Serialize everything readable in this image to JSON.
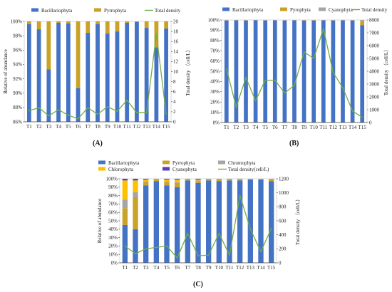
{
  "chart_data": [
    {
      "id": "a",
      "panel_label": "(A)",
      "type": "bar",
      "stacked": true,
      "categories": [
        "T1",
        "T2",
        "T3",
        "T4",
        "T5",
        "T6",
        "T7",
        "T8",
        "T9",
        "T10",
        "T11",
        "T12",
        "T13",
        "T14",
        "T15"
      ],
      "ylabel": "Relative of abundance",
      "y2label": "Total density （cell/L）",
      "ylim": [
        86,
        100
      ],
      "yticks": [
        "86%",
        "88%",
        "90%",
        "92%",
        "94%",
        "96%",
        "98%",
        "100%"
      ],
      "y2lim": [
        0,
        20
      ],
      "y2ticks": [
        "0",
        "2",
        "4",
        "6",
        "8",
        "10",
        "12",
        "14",
        "16",
        "18",
        "20"
      ],
      "legend_position": "top",
      "series": [
        {
          "name": "Bacillariophyta",
          "color": "#4472c4",
          "values": [
            99.6,
            98.9,
            93.3,
            99.8,
            99.7,
            90.7,
            98.4,
            99.6,
            98.3,
            98.6,
            99.8,
            99.9,
            99.1,
            96.4,
            99.0
          ]
        },
        {
          "name": "Pyrrophyta",
          "color": "#c9a227",
          "values": [
            0.4,
            1.1,
            6.7,
            0.2,
            0.3,
            9.3,
            1.6,
            0.4,
            1.7,
            1.4,
            0.2,
            0.1,
            0.9,
            3.6,
            1.0
          ]
        },
        {
          "name": "Total density",
          "type": "line",
          "axis": "y2",
          "color": "#70ad47",
          "values": [
            2.2,
            2.8,
            1.2,
            2.4,
            1.3,
            0.6,
            2.8,
            1.5,
            3.0,
            2.1,
            4.3,
            1.8,
            1.8,
            17.5,
            1.5
          ]
        }
      ]
    },
    {
      "id": "b",
      "panel_label": "(B)",
      "type": "bar",
      "stacked": true,
      "categories": [
        "T1",
        "T2",
        "T3",
        "T4",
        "T5",
        "T6",
        "T7",
        "T8",
        "T9",
        "T10",
        "T11",
        "T12",
        "T13",
        "T14",
        "T15"
      ],
      "ylabel": "",
      "y2label": "Total density （cell/L）",
      "ylim": [
        0,
        100
      ],
      "yticks": [
        "0%",
        "10%",
        "20%",
        "30%",
        "40%",
        "50%",
        "60%",
        "70%",
        "80%",
        "90%",
        "100%"
      ],
      "y2lim": [
        0,
        8000
      ],
      "y2ticks": [
        "0",
        "1000",
        "2000",
        "3000",
        "4000",
        "5000",
        "6000",
        "7000",
        "8000"
      ],
      "legend_position": "top",
      "series": [
        {
          "name": "Bacillariophyta",
          "color": "#4472c4",
          "values": [
            99.5,
            99.6,
            99.4,
            99.7,
            99.5,
            99.6,
            99.5,
            99.6,
            99.4,
            99.5,
            99.6,
            99.5,
            99.6,
            99.5,
            95.0
          ]
        },
        {
          "name": "Pyrophyta",
          "color": "#c9a227",
          "values": [
            0.3,
            0.2,
            0.4,
            0.2,
            0.3,
            0.2,
            0.3,
            0.2,
            0.4,
            0.3,
            0.2,
            0.3,
            0.2,
            0.3,
            4.0
          ]
        },
        {
          "name": "Cyanophyta",
          "color": "#a5a5a5",
          "values": [
            0.2,
            0.2,
            0.2,
            0.1,
            0.2,
            0.2,
            0.2,
            0.2,
            0.2,
            0.2,
            0.2,
            0.2,
            0.2,
            0.2,
            1.0
          ]
        },
        {
          "name": "Total density",
          "type": "line",
          "axis": "y2",
          "color": "#70ad47",
          "values": [
            4200,
            1200,
            3500,
            1700,
            3300,
            3300,
            2300,
            2900,
            5500,
            5000,
            7300,
            3900,
            2700,
            900,
            400
          ]
        }
      ]
    },
    {
      "id": "c",
      "panel_label": "(C)",
      "type": "bar",
      "stacked": true,
      "categories": [
        "T1",
        "T2",
        "T3",
        "T4",
        "T5",
        "T6",
        "T7",
        "T8",
        "T9",
        "T10",
        "T11",
        "T12",
        "T13",
        "T14",
        "T15"
      ],
      "ylabel": "Relative of abundance",
      "y2label": "Total density （cell/L）",
      "ylim": [
        0,
        100
      ],
      "yticks": [
        "0%",
        "10%",
        "20%",
        "30%",
        "40%",
        "50%",
        "60%",
        "70%",
        "80%",
        "90%",
        "100%"
      ],
      "y2lim": [
        0,
        1200
      ],
      "y2ticks": [
        "0",
        "200",
        "400",
        "600",
        "800",
        "1000",
        "1200"
      ],
      "legend_position": "top",
      "series": [
        {
          "name": "Bacillariophyta",
          "color": "#4472c4",
          "values": [
            45,
            40,
            92,
            97,
            92,
            90,
            98,
            95,
            98,
            97,
            98,
            98,
            99,
            99,
            97
          ]
        },
        {
          "name": "Pyrrophyta",
          "color": "#c9a227",
          "values": [
            20,
            38,
            4,
            2,
            4,
            5,
            1,
            2,
            1,
            2,
            1,
            1,
            0.5,
            0.5,
            2
          ]
        },
        {
          "name": "Chromophyta",
          "color": "#a5a5a5",
          "values": [
            10,
            6,
            1,
            0.5,
            1,
            1,
            0.5,
            1,
            0.5,
            0.5,
            0.5,
            0.5,
            0.3,
            0.3,
            0.5
          ]
        },
        {
          "name": "Chlorophyta",
          "color": "#ffc000",
          "values": [
            23,
            14,
            2,
            0.3,
            2,
            3,
            0.3,
            1,
            0.3,
            0.3,
            0.3,
            0.3,
            0.1,
            0.1,
            0.3
          ]
        },
        {
          "name": "Cyanophyta",
          "color": "#5b3fb8",
          "values": [
            2,
            2,
            1,
            0.2,
            1,
            1,
            0.2,
            1,
            0.2,
            0.2,
            0.2,
            0.2,
            0.1,
            0.1,
            0.2
          ]
        },
        {
          "name": "Total density(cell/L)",
          "type": "line",
          "axis": "y2",
          "color": "#70ad47",
          "values": [
            240,
            130,
            200,
            220,
            240,
            70,
            420,
            100,
            110,
            420,
            110,
            960,
            480,
            160,
            490
          ]
        }
      ]
    }
  ]
}
